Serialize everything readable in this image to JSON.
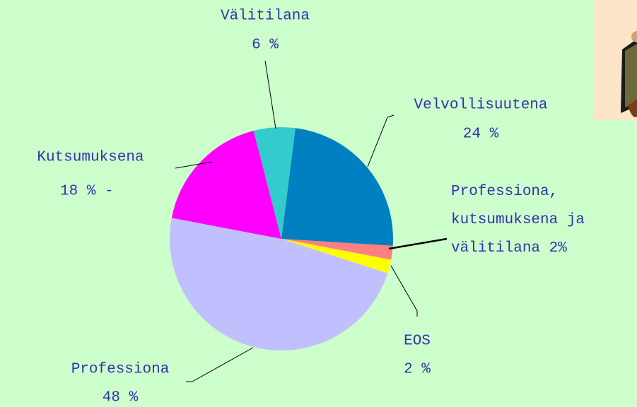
{
  "chart_data": {
    "type": "pie",
    "categories": [
      "Velvollisuutena",
      "Professiona, kutsumuksena ja välitilana",
      "EOS",
      "Professiona",
      "Kutsumuksena",
      "Välitilana"
    ],
    "values": [
      24,
      2,
      2,
      48,
      18,
      6
    ],
    "value_labels": [
      "24 %",
      "2%",
      "2 %",
      "48 %",
      "18 % -",
      "6 %"
    ],
    "colors": [
      "#0080c0",
      "#ff8080",
      "#ffff00",
      "#c0c0ff",
      "#ff00ff",
      "#33cccc"
    ]
  }
}
